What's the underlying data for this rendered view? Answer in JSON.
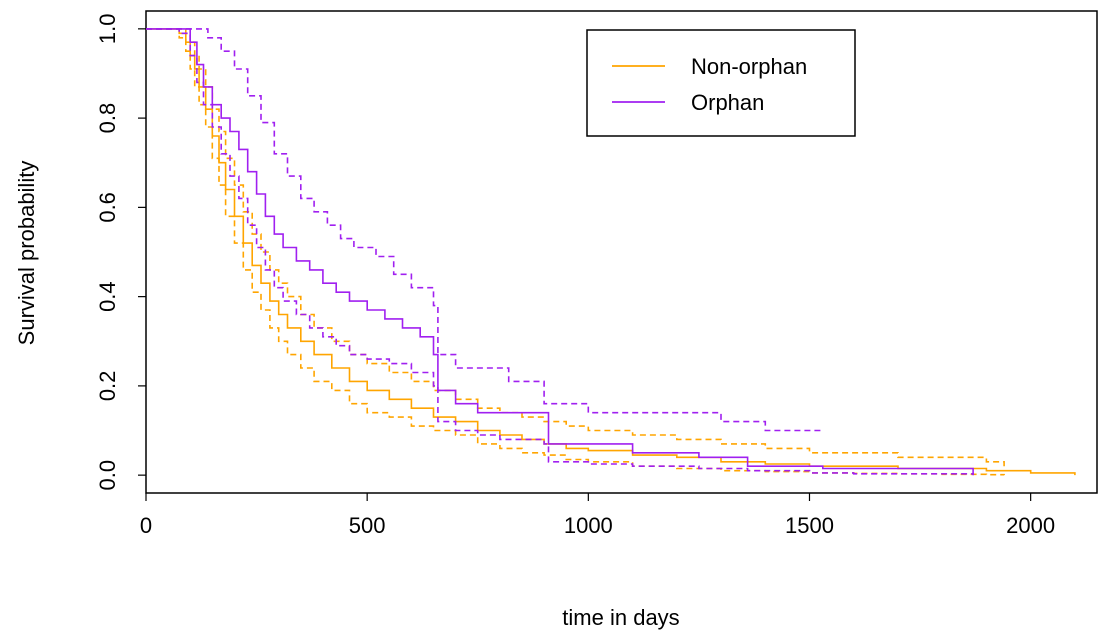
{
  "chart_data": {
    "type": "line",
    "title": "",
    "xlabel": "time in days",
    "ylabel": "Survival probability",
    "xlim": [
      0,
      2150
    ],
    "ylim": [
      -0.04,
      1.04
    ],
    "x_ticks": [
      0,
      500,
      1000,
      1500,
      2000
    ],
    "x_tick_labels": [
      "0",
      "500",
      "1000",
      "1500",
      "2000"
    ],
    "y_ticks": [
      0.0,
      0.2,
      0.4,
      0.6,
      0.8,
      1.0
    ],
    "y_tick_labels": [
      "0.0",
      "0.2",
      "0.4",
      "0.6",
      "0.8",
      "1.0"
    ],
    "grid": false,
    "legend_position": "top-right",
    "series": [
      {
        "name": "Non-orphan",
        "color": "#FFA500",
        "line_style": "step",
        "x": [
          0,
          75,
          90,
          100,
          110,
          120,
          135,
          150,
          165,
          180,
          200,
          220,
          240,
          260,
          280,
          300,
          320,
          350,
          380,
          420,
          460,
          500,
          550,
          600,
          650,
          700,
          750,
          800,
          850,
          900,
          950,
          1000,
          1100,
          1200,
          1300,
          1400,
          1500,
          1600,
          1700,
          1800,
          1900,
          2000,
          2100
        ],
        "y": [
          1.0,
          0.99,
          0.97,
          0.94,
          0.91,
          0.87,
          0.82,
          0.76,
          0.7,
          0.64,
          0.58,
          0.52,
          0.47,
          0.43,
          0.39,
          0.36,
          0.33,
          0.3,
          0.27,
          0.24,
          0.21,
          0.19,
          0.17,
          0.15,
          0.13,
          0.12,
          0.1,
          0.09,
          0.08,
          0.07,
          0.06,
          0.055,
          0.045,
          0.04,
          0.03,
          0.025,
          0.02,
          0.02,
          0.015,
          0.015,
          0.01,
          0.005,
          0.0
        ]
      },
      {
        "name": "Non-orphan upper 95% CI",
        "color": "#FFA500",
        "line_style": "dashed-step",
        "x": [
          0,
          75,
          90,
          100,
          110,
          120,
          135,
          150,
          165,
          180,
          200,
          220,
          240,
          260,
          280,
          300,
          320,
          350,
          380,
          420,
          460,
          500,
          550,
          600,
          650,
          700,
          750,
          800,
          850,
          900,
          950,
          1000,
          1100,
          1200,
          1300,
          1400,
          1500,
          1600,
          1700,
          1800,
          1900,
          1940
        ],
        "y": [
          1.0,
          1.0,
          0.99,
          0.97,
          0.94,
          0.91,
          0.87,
          0.82,
          0.77,
          0.71,
          0.65,
          0.59,
          0.54,
          0.5,
          0.46,
          0.43,
          0.4,
          0.36,
          0.33,
          0.3,
          0.27,
          0.25,
          0.23,
          0.21,
          0.19,
          0.17,
          0.15,
          0.14,
          0.13,
          0.12,
          0.11,
          0.1,
          0.09,
          0.08,
          0.07,
          0.06,
          0.05,
          0.05,
          0.04,
          0.04,
          0.03,
          0.02
        ]
      },
      {
        "name": "Non-orphan lower 95% CI",
        "color": "#FFA500",
        "line_style": "dashed-step",
        "x": [
          0,
          75,
          90,
          100,
          110,
          120,
          135,
          150,
          165,
          180,
          200,
          220,
          240,
          260,
          280,
          300,
          320,
          350,
          380,
          420,
          460,
          500,
          550,
          600,
          650,
          700,
          750,
          800,
          850,
          900,
          950,
          1000,
          1100,
          1200,
          1300,
          1400,
          1500,
          1600,
          1700,
          1800,
          1900,
          1940
        ],
        "y": [
          1.0,
          0.98,
          0.95,
          0.91,
          0.87,
          0.83,
          0.78,
          0.71,
          0.65,
          0.58,
          0.52,
          0.46,
          0.41,
          0.37,
          0.33,
          0.3,
          0.27,
          0.24,
          0.21,
          0.19,
          0.16,
          0.14,
          0.13,
          0.11,
          0.1,
          0.09,
          0.07,
          0.06,
          0.05,
          0.045,
          0.035,
          0.03,
          0.02,
          0.015,
          0.01,
          0.008,
          0.005,
          0.004,
          0.003,
          0.002,
          0.001,
          0.0
        ]
      },
      {
        "name": "Orphan",
        "color": "#A020F0",
        "line_style": "step",
        "x": [
          0,
          75,
          100,
          115,
          130,
          150,
          170,
          190,
          210,
          230,
          250,
          270,
          290,
          310,
          340,
          370,
          400,
          430,
          460,
          500,
          540,
          580,
          620,
          650,
          660,
          700,
          750,
          800,
          900,
          910,
          1000,
          1100,
          1250,
          1360,
          1530,
          1870
        ],
        "y": [
          1.0,
          1.0,
          0.97,
          0.92,
          0.87,
          0.83,
          0.8,
          0.77,
          0.73,
          0.68,
          0.63,
          0.58,
          0.54,
          0.51,
          0.48,
          0.46,
          0.43,
          0.41,
          0.39,
          0.37,
          0.35,
          0.33,
          0.31,
          0.27,
          0.19,
          0.16,
          0.14,
          0.14,
          0.14,
          0.07,
          0.07,
          0.05,
          0.04,
          0.02,
          0.015,
          0.0
        ]
      },
      {
        "name": "Orphan upper 95% CI",
        "color": "#A020F0",
        "line_style": "dashed-step",
        "x": [
          0,
          100,
          140,
          170,
          200,
          230,
          260,
          290,
          320,
          350,
          380,
          410,
          440,
          470,
          520,
          560,
          600,
          650,
          660,
          700,
          820,
          900,
          950,
          1000,
          1100,
          1200,
          1300,
          1400,
          1530
        ],
        "y": [
          1.0,
          1.0,
          0.98,
          0.95,
          0.91,
          0.85,
          0.79,
          0.72,
          0.67,
          0.62,
          0.59,
          0.56,
          0.53,
          0.51,
          0.49,
          0.45,
          0.42,
          0.38,
          0.27,
          0.24,
          0.21,
          0.16,
          0.16,
          0.14,
          0.14,
          0.14,
          0.12,
          0.1,
          0.1
        ]
      },
      {
        "name": "Orphan lower 95% CI",
        "color": "#A020F0",
        "line_style": "dashed-step",
        "x": [
          0,
          75,
          100,
          115,
          130,
          150,
          170,
          190,
          210,
          230,
          250,
          270,
          290,
          310,
          340,
          370,
          400,
          430,
          460,
          500,
          550,
          600,
          650,
          660,
          700,
          750,
          800,
          900,
          910,
          1000,
          1100,
          1250,
          1360,
          1500,
          1600,
          1870
        ],
        "y": [
          1.0,
          0.99,
          0.94,
          0.88,
          0.83,
          0.78,
          0.72,
          0.67,
          0.62,
          0.56,
          0.51,
          0.46,
          0.42,
          0.39,
          0.36,
          0.33,
          0.31,
          0.29,
          0.27,
          0.26,
          0.25,
          0.23,
          0.2,
          0.12,
          0.1,
          0.09,
          0.08,
          0.07,
          0.03,
          0.025,
          0.02,
          0.015,
          0.01,
          0.005,
          0.003,
          0.0
        ]
      }
    ],
    "legend": [
      {
        "label": "Non-orphan",
        "color": "#FFA500"
      },
      {
        "label": "Orphan",
        "color": "#A020F0"
      }
    ]
  }
}
